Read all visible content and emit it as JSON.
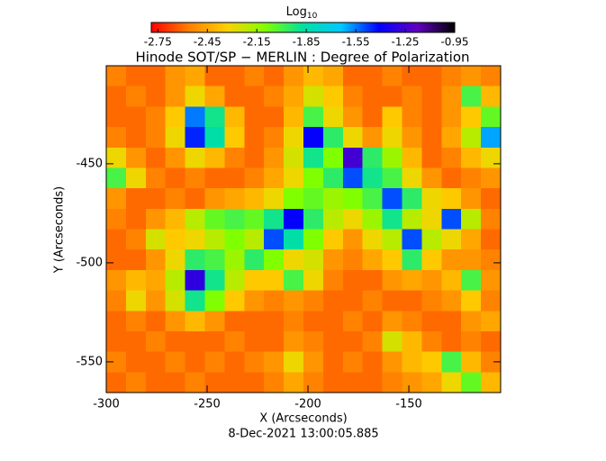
{
  "chart_data": {
    "type": "heatmap",
    "title": "Hinode SOT/SP − MERLIN : Degree of Polarization",
    "x_label": "X (Arcseconds)",
    "y_label": "Y (Arcseconds)",
    "footer": "8-Dec-2021 13:00:05.885",
    "colorbar_label": "Log",
    "colorbar_label_sub": "10",
    "xlim": [
      -300,
      -104.5
    ],
    "xticks": [
      -300,
      -250,
      -200,
      -150
    ],
    "ylim": [
      -565.5,
      -400.5
    ],
    "yticks": [
      -450,
      -500,
      -550
    ],
    "zlim": [
      -2.79,
      -0.95
    ],
    "zticks": [
      -2.75,
      -2.45,
      -2.15,
      -1.85,
      -1.55,
      -1.25,
      -0.95
    ],
    "colormap": [
      "#ff0000",
      "#ff8000",
      "#ffd000",
      "#80ff00",
      "#00e0a0",
      "#00c8ff",
      "#0000ff",
      "#6000c0",
      "#000000"
    ],
    "z": [
      [
        -2.55,
        -2.6,
        -2.6,
        -2.5,
        -2.45,
        -2.6,
        -2.6,
        -2.55,
        -2.6,
        -2.5,
        -2.4,
        -2.45,
        -2.6,
        -2.6,
        -2.55,
        -2.6,
        -2.6,
        -2.55,
        -2.5,
        -2.55
      ],
      [
        -2.6,
        -2.55,
        -2.6,
        -2.5,
        -2.3,
        -2.45,
        -2.6,
        -2.6,
        -2.55,
        -2.45,
        -2.25,
        -2.35,
        -2.55,
        -2.6,
        -2.6,
        -2.55,
        -2.6,
        -2.5,
        -2.0,
        -2.4
      ],
      [
        -2.6,
        -2.6,
        -2.55,
        -2.35,
        -1.55,
        -1.9,
        -2.4,
        -2.6,
        -2.6,
        -2.4,
        -2.0,
        -2.3,
        -2.5,
        -2.6,
        -2.35,
        -2.55,
        -2.6,
        -2.5,
        -2.35,
        -2.05
      ],
      [
        -2.55,
        -2.6,
        -2.55,
        -2.3,
        -1.45,
        -1.85,
        -2.35,
        -2.6,
        -2.55,
        -2.3,
        -1.4,
        -1.95,
        -2.3,
        -2.5,
        -2.3,
        -2.5,
        -2.6,
        -2.45,
        -2.2,
        -1.6
      ],
      [
        -2.3,
        -2.5,
        -2.6,
        -2.5,
        -2.3,
        -2.4,
        -2.55,
        -2.6,
        -2.5,
        -2.25,
        -1.9,
        -2.1,
        -1.25,
        -1.95,
        -2.15,
        -2.4,
        -2.6,
        -2.55,
        -2.4,
        -2.3
      ],
      [
        -2.0,
        -2.3,
        -2.55,
        -2.6,
        -2.55,
        -2.6,
        -2.6,
        -2.55,
        -2.45,
        -2.3,
        -2.1,
        -1.95,
        -1.5,
        -1.9,
        -2.0,
        -2.3,
        -2.5,
        -2.6,
        -2.55,
        -2.5
      ],
      [
        -2.5,
        -2.6,
        -2.6,
        -2.55,
        -2.6,
        -2.5,
        -2.45,
        -2.4,
        -2.3,
        -2.1,
        -2.05,
        -2.15,
        -2.1,
        -2.0,
        -1.5,
        -1.95,
        -2.3,
        -2.35,
        -2.5,
        -2.6
      ],
      [
        -2.55,
        -2.6,
        -2.5,
        -2.4,
        -2.2,
        -2.05,
        -2.0,
        -2.05,
        -1.9,
        -1.4,
        -1.95,
        -2.2,
        -2.3,
        -2.15,
        -1.9,
        -2.2,
        -2.3,
        -1.5,
        -2.2,
        -2.55
      ],
      [
        -2.6,
        -2.55,
        -2.25,
        -2.35,
        -2.3,
        -2.2,
        -2.1,
        -2.2,
        -1.5,
        -1.85,
        -2.1,
        -2.35,
        -2.5,
        -2.3,
        -2.2,
        -1.5,
        -2.2,
        -2.3,
        -2.45,
        -2.6
      ],
      [
        -2.6,
        -2.6,
        -2.5,
        -2.3,
        -1.95,
        -2.0,
        -2.15,
        -1.95,
        -2.1,
        -2.3,
        -2.25,
        -2.5,
        -2.55,
        -2.45,
        -2.35,
        -1.95,
        -2.35,
        -2.5,
        -2.5,
        -2.55
      ],
      [
        -2.5,
        -2.4,
        -2.45,
        -2.2,
        -1.3,
        -1.9,
        -2.2,
        -2.35,
        -2.35,
        -2.0,
        -2.3,
        -2.55,
        -2.6,
        -2.6,
        -2.5,
        -2.45,
        -2.5,
        -2.4,
        -2.0,
        -2.5
      ],
      [
        -2.55,
        -2.3,
        -2.5,
        -2.25,
        -1.9,
        -2.1,
        -2.35,
        -2.5,
        -2.55,
        -2.5,
        -2.55,
        -2.6,
        -2.6,
        -2.55,
        -2.6,
        -2.6,
        -2.55,
        -2.5,
        -2.35,
        -2.55
      ],
      [
        -2.6,
        -2.55,
        -2.6,
        -2.5,
        -2.4,
        -2.5,
        -2.6,
        -2.6,
        -2.6,
        -2.55,
        -2.6,
        -2.6,
        -2.55,
        -2.6,
        -2.5,
        -2.55,
        -2.6,
        -2.6,
        -2.5,
        -2.45
      ],
      [
        -2.6,
        -2.6,
        -2.55,
        -2.6,
        -2.6,
        -2.6,
        -2.55,
        -2.6,
        -2.6,
        -2.5,
        -2.55,
        -2.6,
        -2.6,
        -2.55,
        -2.25,
        -2.4,
        -2.55,
        -2.6,
        -2.55,
        -2.6
      ],
      [
        -2.55,
        -2.6,
        -2.6,
        -2.55,
        -2.6,
        -2.55,
        -2.6,
        -2.55,
        -2.5,
        -2.3,
        -2.5,
        -2.6,
        -2.55,
        -2.6,
        -2.5,
        -2.4,
        -2.35,
        -2.0,
        -2.4,
        -2.55
      ],
      [
        -2.6,
        -2.55,
        -2.6,
        -2.6,
        -2.55,
        -2.6,
        -2.6,
        -2.6,
        -2.55,
        -2.45,
        -2.55,
        -2.6,
        -2.6,
        -2.6,
        -2.55,
        -2.5,
        -2.45,
        -2.3,
        -2.05,
        -2.4
      ]
    ]
  }
}
